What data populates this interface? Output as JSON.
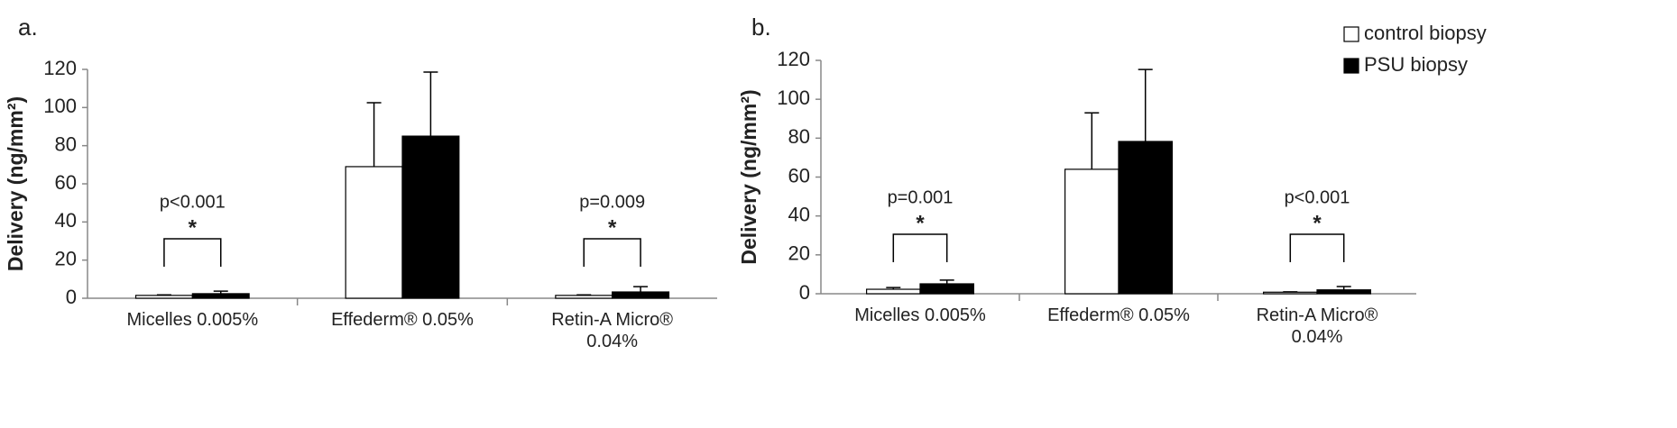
{
  "chart_data": [
    {
      "type": "bar",
      "panel_label": "a.",
      "ylabel": "Delivery (ng/mm²)",
      "categories": [
        "Micelles 0.005%",
        "Effederm® 0.05%",
        "Retin-A Micro® 0.04%"
      ],
      "series": [
        {
          "color": "#ffffff",
          "values": [
            1.5,
            69,
            1.5
          ],
          "errors": [
            0.3,
            33.5,
            0.3
          ]
        },
        {
          "color": "#000000",
          "values": [
            2.4,
            85,
            3.3
          ],
          "errors": [
            1.3,
            33.6,
            2.8
          ]
        }
      ],
      "annotations": [
        {
          "p": "p<0.001",
          "star": "*"
        },
        null,
        {
          "p": "p=0.009",
          "star": "*"
        }
      ],
      "ylim": [
        0,
        120
      ],
      "yticks": [
        0,
        20,
        40,
        60,
        80,
        100,
        120
      ]
    },
    {
      "type": "bar",
      "panel_label": "b.",
      "ylabel": "Delivery (ng/mm²)",
      "categories": [
        "Micelles 0.005%",
        "Effederm® 0.05%",
        "Retin-A Micro® 0.04%"
      ],
      "series": [
        {
          "name": "control biopsy",
          "color": "#ffffff",
          "values": [
            2.3,
            64,
            0.8
          ],
          "errors": [
            0.9,
            29,
            0.2
          ]
        },
        {
          "name": "PSU biopsy",
          "color": "#000000",
          "values": [
            5.1,
            78.3,
            2
          ],
          "errors": [
            1.9,
            37,
            1.7
          ]
        }
      ],
      "annotations": [
        {
          "p": "p=0.001",
          "star": "*"
        },
        null,
        {
          "p": "p<0.001",
          "star": "*"
        }
      ],
      "ylim": [
        0,
        120
      ],
      "yticks": [
        0,
        20,
        40,
        60,
        80,
        100,
        120
      ],
      "legend": "top-right"
    }
  ]
}
